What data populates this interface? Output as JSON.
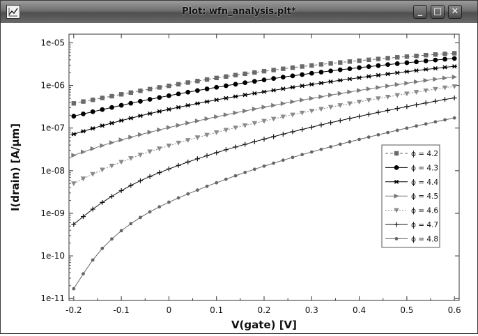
{
  "window": {
    "title": "Plot: wfn_analysis.plt*",
    "app_icon": "plot-file-icon",
    "buttons": [
      {
        "name": "minimize-button",
        "glyph": "_"
      },
      {
        "name": "maximize-button",
        "glyph": "□"
      },
      {
        "name": "close-button",
        "glyph": "✕"
      }
    ]
  },
  "chart_data": {
    "type": "line",
    "title": "",
    "xlabel": "V(gate) [V]",
    "ylabel": "I(drain) [A/µm]",
    "xlim": [
      -0.21,
      0.61
    ],
    "yscale": "log",
    "ylim": [
      9e-12,
      1.6e-05
    ],
    "xticks": [
      -0.2,
      -0.1,
      0,
      0.1,
      0.2,
      0.3,
      0.4,
      0.5,
      0.6
    ],
    "xtick_labels": [
      "-0.2",
      "-0.1",
      "0",
      "0.1",
      "0.2",
      "0.3",
      "0.4",
      "0.5",
      "0.6"
    ],
    "yticks": [
      1e-11,
      1e-10,
      1e-09,
      1e-08,
      1e-07,
      1e-06,
      1e-05
    ],
    "ytick_labels": [
      "1e-11",
      "1e-10",
      "1e-09",
      "1e-08",
      "1e-07",
      "1e-06",
      "1e-05"
    ],
    "grid": false,
    "legend_position": "right",
    "x": [
      -0.2,
      -0.18,
      -0.16,
      -0.14,
      -0.12,
      -0.1,
      -0.08,
      -0.06,
      -0.04,
      -0.02,
      0,
      0.02,
      0.04,
      0.06,
      0.08,
      0.1,
      0.12,
      0.14,
      0.16,
      0.18,
      0.2,
      0.22,
      0.24,
      0.26,
      0.28,
      0.3,
      0.32,
      0.34,
      0.36,
      0.38,
      0.4,
      0.42,
      0.44,
      0.46,
      0.48,
      0.5,
      0.52,
      0.54,
      0.56,
      0.58,
      0.6
    ],
    "series": [
      {
        "name": "ϕ = 4.2",
        "color": "#6a6a6a",
        "marker": "square",
        "dash": "4,3",
        "values": [
          3.8e-07,
          4.2e-07,
          4.6e-07,
          5.1e-07,
          5.6e-07,
          6.2e-07,
          6.8e-07,
          7.5e-07,
          8.2e-07,
          9e-07,
          9.8e-07,
          1.07e-06,
          1.17e-06,
          1.27e-06,
          1.38e-06,
          1.5e-06,
          1.62e-06,
          1.75e-06,
          1.88e-06,
          2.02e-06,
          2.16e-06,
          2.3e-06,
          2.46e-06,
          2.62e-06,
          2.78e-06,
          2.95e-06,
          3.12e-06,
          3.29e-06,
          3.46e-06,
          3.64e-06,
          3.82e-06,
          4e-06,
          4.19e-06,
          4.38e-06,
          4.57e-06,
          4.76e-06,
          4.95e-06,
          5.14e-06,
          5.33e-06,
          5.52e-06,
          5.7e-06
        ]
      },
      {
        "name": "ϕ = 4.3",
        "color": "#000000",
        "marker": "circle",
        "dash": "",
        "values": [
          1.9e-07,
          2.15e-07,
          2.42e-07,
          2.72e-07,
          3.05e-07,
          3.42e-07,
          3.82e-07,
          4.25e-07,
          4.72e-07,
          5.22e-07,
          5.75e-07,
          6.33e-07,
          6.95e-07,
          7.6e-07,
          8.3e-07,
          9.05e-07,
          9.85e-07,
          1.07e-06,
          1.16e-06,
          1.25e-06,
          1.35e-06,
          1.46e-06,
          1.57e-06,
          1.68e-06,
          1.8e-06,
          1.93e-06,
          2.06e-06,
          2.19e-06,
          2.33e-06,
          2.47e-06,
          2.62e-06,
          2.77e-06,
          2.93e-06,
          3.09e-06,
          3.25e-06,
          3.42e-06,
          3.59e-06,
          3.77e-06,
          3.95e-06,
          4.13e-06,
          4.3e-06
        ]
      },
      {
        "name": "ϕ = 4.4",
        "color": "#000000",
        "marker": "star",
        "dash": "",
        "values": [
          7.2e-08,
          8.4e-08,
          9.8e-08,
          1.14e-07,
          1.31e-07,
          1.5e-07,
          1.71e-07,
          1.94e-07,
          2.19e-07,
          2.46e-07,
          2.75e-07,
          3.07e-07,
          3.41e-07,
          3.78e-07,
          4.17e-07,
          4.59e-07,
          5.03e-07,
          5.5e-07,
          6e-07,
          6.53e-07,
          7.1e-07,
          7.7e-07,
          8.35e-07,
          9.05e-07,
          9.8e-07,
          1.06e-06,
          1.14e-06,
          1.23e-06,
          1.32e-06,
          1.42e-06,
          1.52e-06,
          1.63e-06,
          1.74e-06,
          1.86e-06,
          1.98e-06,
          2.11e-06,
          2.24e-06,
          2.38e-06,
          2.52e-06,
          2.67e-06,
          2.8e-06
        ]
      },
      {
        "name": "ϕ = 4.5",
        "color": "#7a7a7a",
        "marker": "tri-right",
        "dash": "",
        "values": [
          2.3e-08,
          2.75e-08,
          3.28e-08,
          3.88e-08,
          4.56e-08,
          5.3e-08,
          6.12e-08,
          7.02e-08,
          8e-08,
          9.08e-08,
          1.03e-07,
          1.16e-07,
          1.31e-07,
          1.47e-07,
          1.65e-07,
          1.84e-07,
          2.05e-07,
          2.28e-07,
          2.53e-07,
          2.8e-07,
          3.1e-07,
          3.42e-07,
          3.77e-07,
          4.15e-07,
          4.55e-07,
          4.98e-07,
          5.45e-07,
          5.95e-07,
          6.48e-07,
          7.05e-07,
          7.65e-07,
          8.3e-07,
          8.98e-07,
          9.7e-07,
          1.05e-06,
          1.13e-06,
          1.22e-06,
          1.31e-06,
          1.4e-06,
          1.5e-06,
          1.58e-06
        ]
      },
      {
        "name": "ϕ = 4.6",
        "color": "#8a8a8a",
        "marker": "tri-down",
        "dash": "2,2",
        "values": [
          5e-09,
          6.5e-09,
          8.3e-09,
          1.05e-08,
          1.3e-08,
          1.6e-08,
          1.95e-08,
          2.35e-08,
          2.8e-08,
          3.3e-08,
          3.85e-08,
          4.5e-08,
          5.2e-08,
          6e-08,
          6.9e-08,
          7.9e-08,
          9e-08,
          1.02e-07,
          1.15e-07,
          1.3e-07,
          1.46e-07,
          1.64e-07,
          1.84e-07,
          2.05e-07,
          2.28e-07,
          2.53e-07,
          2.8e-07,
          3.1e-07,
          3.42e-07,
          3.76e-07,
          4.12e-07,
          4.52e-07,
          4.95e-07,
          5.4e-07,
          5.9e-07,
          6.42e-07,
          6.98e-07,
          7.58e-07,
          8.22e-07,
          8.9e-07,
          9.5e-07
        ]
      },
      {
        "name": "ϕ = 4.7",
        "color": "#111111",
        "marker": "plus",
        "dash": "",
        "values": [
          5.5e-10,
          8.4e-10,
          1.25e-09,
          1.8e-09,
          2.5e-09,
          3.4e-09,
          4.5e-09,
          5.8e-09,
          7.3e-09,
          9e-09,
          1.1e-08,
          1.33e-08,
          1.6e-08,
          1.9e-08,
          2.25e-08,
          2.65e-08,
          3.1e-08,
          3.6e-08,
          4.15e-08,
          4.8e-08,
          5.5e-08,
          6.3e-08,
          7.2e-08,
          8.2e-08,
          9.3e-08,
          1.05e-07,
          1.19e-07,
          1.34e-07,
          1.5e-07,
          1.68e-07,
          1.88e-07,
          2.1e-07,
          2.34e-07,
          2.6e-07,
          2.88e-07,
          3.18e-07,
          3.52e-07,
          3.88e-07,
          4.27e-07,
          4.7e-07,
          5.1e-07
        ]
      },
      {
        "name": "ϕ = 4.8",
        "color": "#666666",
        "marker": "dot",
        "dash": "",
        "values": [
          1.7e-11,
          3.8e-11,
          8e-11,
          1.5e-10,
          2.5e-10,
          3.9e-10,
          5.7e-10,
          8e-10,
          1.08e-09,
          1.42e-09,
          1.82e-09,
          2.3e-09,
          2.85e-09,
          3.5e-09,
          4.3e-09,
          5.2e-09,
          6.3e-09,
          7.6e-09,
          9.1e-09,
          1.08e-08,
          1.28e-08,
          1.5e-08,
          1.76e-08,
          2.05e-08,
          2.38e-08,
          2.75e-08,
          3.17e-08,
          3.64e-08,
          4.17e-08,
          4.76e-08,
          5.42e-08,
          6.15e-08,
          6.96e-08,
          7.86e-08,
          8.86e-08,
          9.96e-08,
          1.12e-07,
          1.25e-07,
          1.4e-07,
          1.56e-07,
          1.73e-07
        ]
      }
    ]
  }
}
